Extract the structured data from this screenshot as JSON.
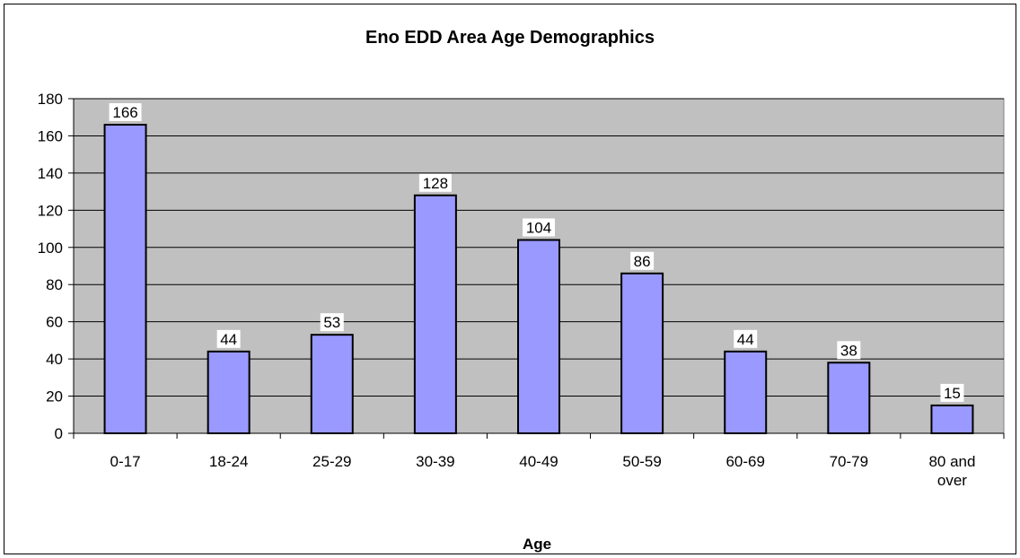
{
  "chart_data": {
    "type": "bar",
    "title": "Eno EDD Area Age Demographics",
    "xlabel": "Age",
    "ylabel": "",
    "categories": [
      "0-17",
      "18-24",
      "25-29",
      "30-39",
      "40-49",
      "50-59",
      "60-69",
      "70-79",
      "80 and over"
    ],
    "values": [
      166,
      44,
      53,
      128,
      104,
      86,
      44,
      38,
      15
    ],
    "ylim": [
      0,
      180
    ],
    "yticks": [
      0,
      20,
      40,
      60,
      80,
      100,
      120,
      140,
      160,
      180
    ],
    "grid": true,
    "legend": "none",
    "colors": {
      "bar_fill": "#9999FF",
      "bar_stroke": "#000000",
      "plot_background": "#C0C0C0",
      "gridline": "#000000"
    }
  }
}
